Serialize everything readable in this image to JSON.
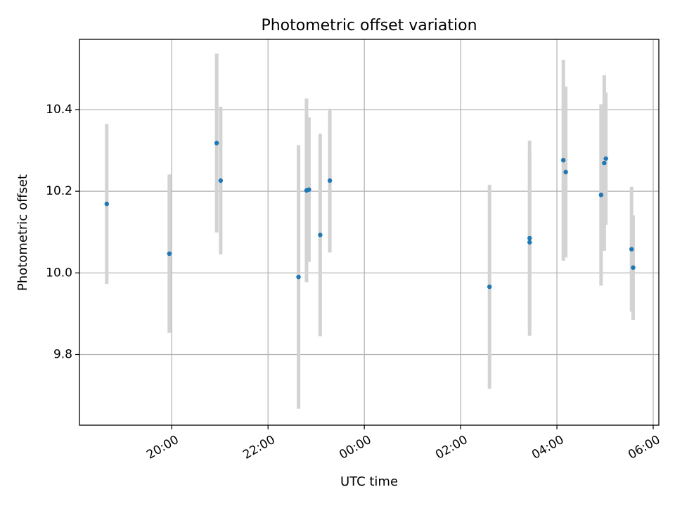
{
  "chart_data": {
    "type": "scatter",
    "title": "Photometric offset variation",
    "xlabel": "UTC time",
    "ylabel": "Photometric offset",
    "x_is_time": true,
    "xlim": [
      "18:05",
      "06:07"
    ],
    "ylim": [
      9.627,
      10.572
    ],
    "xticks": [
      "20:00",
      "22:00",
      "00:00",
      "02:00",
      "04:00",
      "06:00"
    ],
    "yticks": [
      "9.8",
      "10.0",
      "10.2",
      "10.4"
    ],
    "grid": true,
    "legend": "none",
    "colors": {
      "points": "#1f77b4",
      "errorbars": "#d3d3d3",
      "grid": "#b0b0b0",
      "frame": "#000000"
    },
    "points": [
      {
        "t": "18:39",
        "y": 10.169,
        "err": 0.196
      },
      {
        "t": "19:57",
        "y": 10.047,
        "err": 0.194
      },
      {
        "t": "20:56",
        "y": 10.318,
        "err": 0.219
      },
      {
        "t": "21:01",
        "y": 10.226,
        "err": 0.181
      },
      {
        "t": "22:38",
        "y": 9.99,
        "err": 0.323
      },
      {
        "t": "22:48",
        "y": 10.202,
        "err": 0.225
      },
      {
        "t": "22:51",
        "y": 10.204,
        "err": 0.177
      },
      {
        "t": "23:05",
        "y": 10.093,
        "err": 0.248
      },
      {
        "t": "23:17",
        "y": 10.226,
        "err": 0.176
      },
      {
        "t": "02:36",
        "y": 9.966,
        "err": 0.25
      },
      {
        "t": "03:26",
        "y": 10.085,
        "err": 0.239
      },
      {
        "t": "03:26",
        "y": 10.075,
        "err": 0.209
      },
      {
        "t": "04:08",
        "y": 10.276,
        "err": 0.246
      },
      {
        "t": "04:11",
        "y": 10.247,
        "err": 0.209
      },
      {
        "t": "04:55",
        "y": 10.191,
        "err": 0.222
      },
      {
        "t": "04:59",
        "y": 10.269,
        "err": 0.215
      },
      {
        "t": "05:01",
        "y": 10.28,
        "err": 0.162
      },
      {
        "t": "05:33",
        "y": 10.058,
        "err": 0.153
      },
      {
        "t": "05:35",
        "y": 10.013,
        "err": 0.128
      }
    ]
  }
}
